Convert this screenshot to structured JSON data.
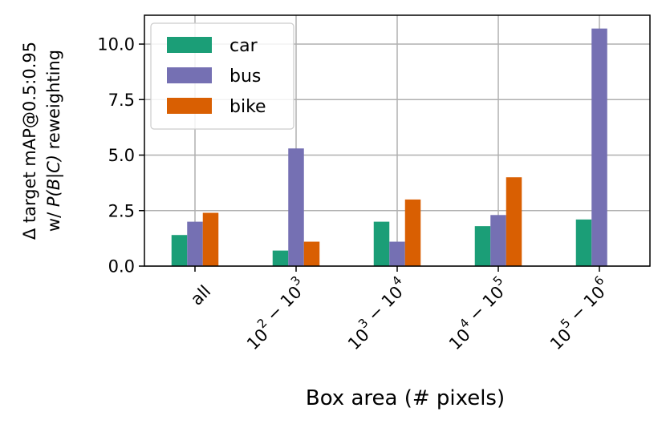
{
  "chart_data": {
    "type": "bar",
    "categories": [
      "all",
      "10^2 − 10^3",
      "10^3 − 10^4",
      "10^4 − 10^5",
      "10^5 − 10^6"
    ],
    "category_labels": [
      {
        "base": "all",
        "parts": []
      },
      {
        "base": "",
        "parts": [
          [
            "10",
            "2"
          ],
          [
            "10",
            "3"
          ]
        ]
      },
      {
        "base": "",
        "parts": [
          [
            "10",
            "3"
          ],
          [
            "10",
            "4"
          ]
        ]
      },
      {
        "base": "",
        "parts": [
          [
            "10",
            "4"
          ],
          [
            "10",
            "5"
          ]
        ]
      },
      {
        "base": "",
        "parts": [
          [
            "10",
            "5"
          ],
          [
            "10",
            "6"
          ]
        ]
      }
    ],
    "series": [
      {
        "name": "car",
        "color": "#1b9e77",
        "values": [
          1.4,
          0.7,
          2.0,
          1.8,
          2.1
        ]
      },
      {
        "name": "bus",
        "color": "#7570b3",
        "values": [
          2.0,
          5.3,
          1.1,
          2.3,
          10.7
        ]
      },
      {
        "name": "bike",
        "color": "#d95f02",
        "values": [
          2.4,
          1.1,
          3.0,
          4.0,
          0.0
        ]
      }
    ],
    "xlabel": "Box area (# pixels)",
    "ylabel_line1": "Δ target mAP@0.5:0.95",
    "ylabel_line2_prefix": "w/ ",
    "ylabel_line2_math": "P(B|C)",
    "ylabel_line2_suffix": " reweighting",
    "ylim": [
      0,
      11.3
    ],
    "yticks": [
      0.0,
      2.5,
      5.0,
      7.5,
      10.0
    ],
    "ytick_labels": [
      "0.0",
      "2.5",
      "5.0",
      "7.5",
      "10.0"
    ],
    "grid": true,
    "legend_position": "top-left"
  }
}
